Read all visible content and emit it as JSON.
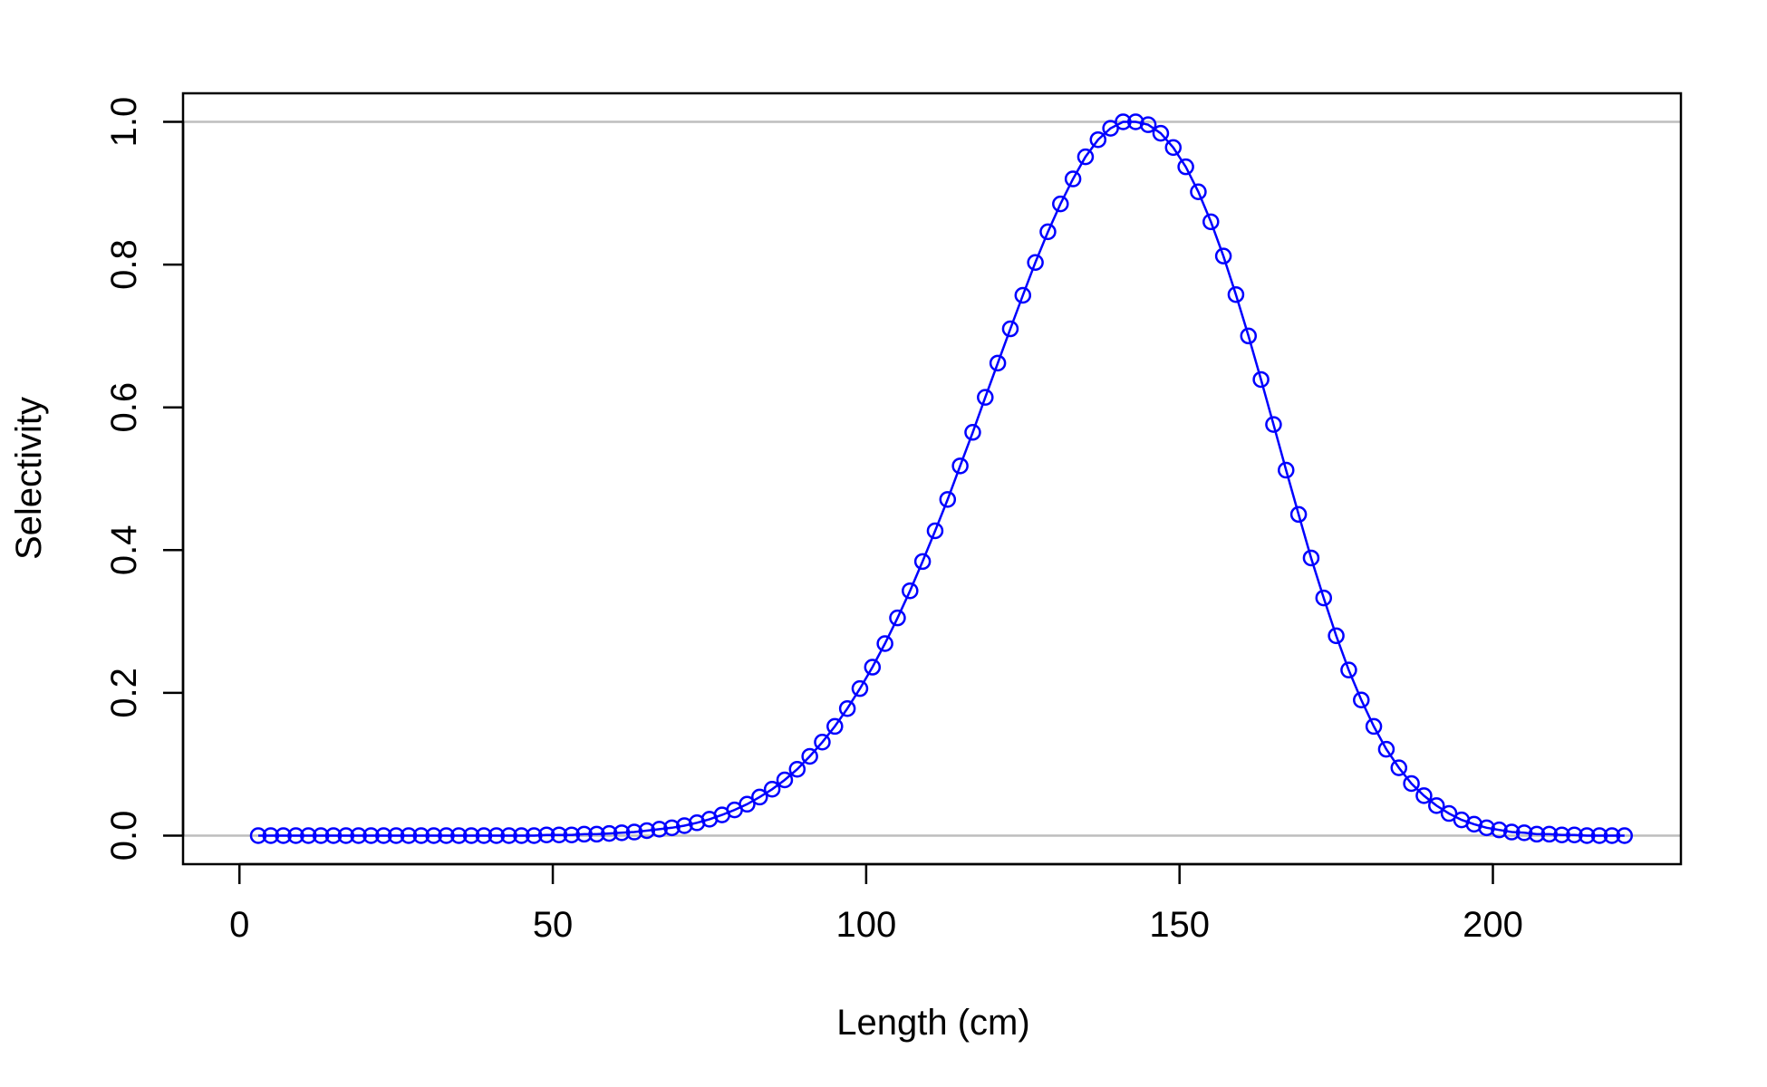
{
  "chart_data": {
    "type": "line",
    "title": "",
    "xlabel": "Length (cm)",
    "ylabel": "Selectivity",
    "xlim": [
      -9,
      230
    ],
    "ylim": [
      -0.04,
      1.04
    ],
    "x_ticks": [
      0,
      50,
      100,
      150,
      200
    ],
    "y_ticks": [
      0.0,
      0.2,
      0.4,
      0.6,
      0.8,
      1.0
    ],
    "x_tick_labels": [
      "0",
      "50",
      "100",
      "150",
      "200"
    ],
    "y_tick_labels": [
      "0.0",
      "0.2",
      "0.4",
      "0.6",
      "0.8",
      "1.0"
    ],
    "reference_lines_y": [
      0,
      1
    ],
    "grid": false,
    "legend": "none",
    "colors": {
      "series": "#0000ff",
      "reference": "#bebebe",
      "axis": "#000000"
    },
    "series": [
      {
        "x": [
          3,
          5,
          7,
          9,
          11,
          13,
          15,
          17,
          19,
          21,
          23,
          25,
          27,
          29,
          31,
          33,
          35,
          37,
          39,
          41,
          43,
          45,
          47,
          49,
          51,
          53,
          55,
          57,
          59,
          61,
          63,
          65,
          67,
          69,
          71,
          73,
          75,
          77,
          79,
          81,
          83,
          85,
          87,
          89,
          91,
          93,
          95,
          97,
          99,
          101,
          103,
          105,
          107,
          109,
          111,
          113,
          115,
          117,
          119,
          121,
          123,
          125,
          127,
          129,
          131,
          133,
          135,
          137,
          139,
          141,
          143,
          145,
          147,
          149,
          151,
          153,
          155,
          157,
          159,
          161,
          163,
          165,
          167,
          169,
          171,
          173,
          175,
          177,
          179,
          181,
          183,
          185,
          187,
          189,
          191,
          193,
          195,
          197,
          199,
          201,
          203,
          205,
          207,
          209,
          211,
          213,
          215,
          217,
          219,
          221
        ],
        "values": [
          0.0,
          0.0,
          0.0,
          0.0,
          0.0,
          0.0,
          0.0,
          0.0,
          0.0,
          0.0,
          0.0,
          0.0,
          0.0,
          0.0,
          0.0,
          0.0,
          0.0,
          0.0,
          0.0,
          0.0,
          0.0,
          0.0,
          0.0,
          0.001,
          0.001,
          0.001,
          0.002,
          0.002,
          0.003,
          0.004,
          0.005,
          0.007,
          0.009,
          0.011,
          0.014,
          0.018,
          0.023,
          0.029,
          0.036,
          0.044,
          0.054,
          0.065,
          0.078,
          0.093,
          0.111,
          0.131,
          0.153,
          0.178,
          0.206,
          0.236,
          0.269,
          0.305,
          0.343,
          0.384,
          0.427,
          0.471,
          0.518,
          0.565,
          0.614,
          0.662,
          0.71,
          0.757,
          0.803,
          0.846,
          0.885,
          0.92,
          0.951,
          0.975,
          0.991,
          1.0,
          1.0,
          0.996,
          0.984,
          0.964,
          0.937,
          0.902,
          0.86,
          0.812,
          0.758,
          0.7,
          0.639,
          0.576,
          0.512,
          0.45,
          0.389,
          0.333,
          0.28,
          0.232,
          0.19,
          0.153,
          0.121,
          0.095,
          0.073,
          0.056,
          0.042,
          0.031,
          0.022,
          0.016,
          0.011,
          0.008,
          0.005,
          0.004,
          0.002,
          0.002,
          0.001,
          0.001,
          0.0,
          0.0,
          0.0,
          0.0
        ]
      }
    ]
  }
}
